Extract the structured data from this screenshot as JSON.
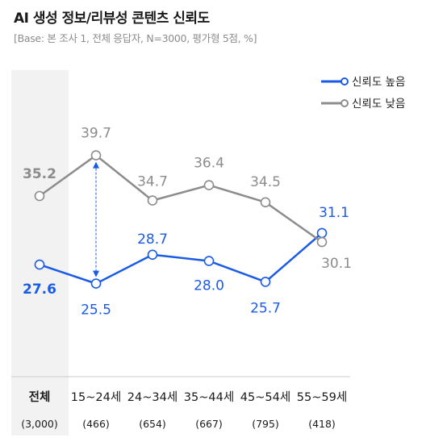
{
  "title": "AI 생성 정보/리뷰성 콘텐츠 신뢰도",
  "subtitle": "[Base: 본 조사 1, 전체 응답자, N=3000, 평가형 5점, %]",
  "colors": {
    "high": "#1a5be6",
    "low": "#8c8c8c",
    "highlight_band": "#f2f2f2",
    "axis": "#cccccc"
  },
  "chart_data": {
    "type": "line",
    "categories": [
      "전체",
      "15~24세",
      "24~34세",
      "35~44세",
      "45~54세",
      "55~59세"
    ],
    "sample_sizes": [
      "(3,000)",
      "(466)",
      "(654)",
      "(667)",
      "(795)",
      "(418)"
    ],
    "series": [
      {
        "name": "신뢰도 높음",
        "values": [
          27.6,
          25.5,
          28.7,
          28.0,
          25.7,
          31.1
        ],
        "labels": [
          "27.6",
          "25.5",
          "28.7",
          "28.0",
          "25.7",
          "31.1"
        ]
      },
      {
        "name": "신뢰도 낮음",
        "values": [
          35.2,
          39.7,
          34.7,
          36.4,
          34.5,
          30.1
        ],
        "labels": [
          "35.2",
          "39.7",
          "34.7",
          "36.4",
          "34.5",
          "30.1"
        ]
      }
    ],
    "legend_position": "top-right",
    "grid": false,
    "highlighted_category": "전체",
    "annotation": {
      "type": "double-arrow",
      "category": "15~24세"
    }
  }
}
